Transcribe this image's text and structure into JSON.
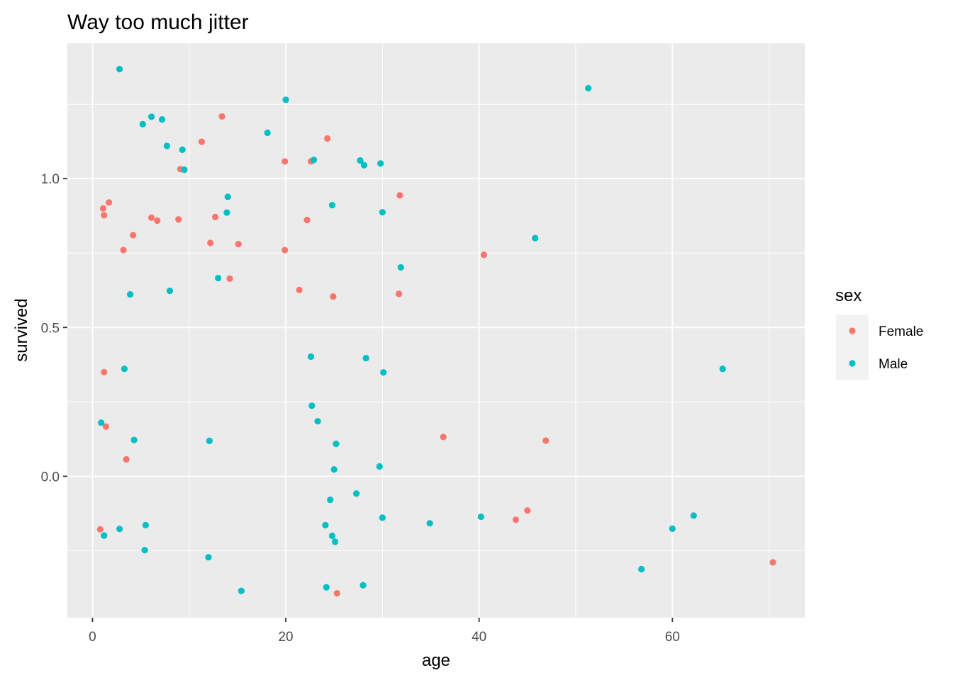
{
  "chart_data": {
    "type": "scatter",
    "title": "Way too much jitter",
    "xlabel": "age",
    "ylabel": "survived",
    "xlim": [
      -2.6,
      73.7
    ],
    "ylim": [
      -0.475,
      1.455
    ],
    "x_ticks": [
      0,
      20,
      40,
      60
    ],
    "x_tick_labels": [
      "0",
      "20",
      "40",
      "60"
    ],
    "y_ticks": [
      0.0,
      0.5,
      1.0
    ],
    "y_tick_labels": [
      "0.0",
      "0.5",
      "1.0"
    ],
    "grid": true,
    "legend": {
      "title": "sex",
      "position": "right"
    },
    "series": [
      {
        "name": "Female",
        "color": "#F8766D",
        "points": [
          [
            1.1,
            0.9
          ],
          [
            1.2,
            0.877
          ],
          [
            1.7,
            0.92
          ],
          [
            4.2,
            0.81
          ],
          [
            3.2,
            0.76
          ],
          [
            6.1,
            0.869
          ],
          [
            6.7,
            0.859
          ],
          [
            8.9,
            0.863
          ],
          [
            9.1,
            1.032
          ],
          [
            11.3,
            1.124
          ],
          [
            13.4,
            1.209
          ],
          [
            12.2,
            0.784
          ],
          [
            12.7,
            0.871
          ],
          [
            15.1,
            0.78
          ],
          [
            14.2,
            0.664
          ],
          [
            19.9,
            1.058
          ],
          [
            19.9,
            0.76
          ],
          [
            21.4,
            0.626
          ],
          [
            22.2,
            0.861
          ],
          [
            22.6,
            1.058
          ],
          [
            24.3,
            1.135
          ],
          [
            24.9,
            0.604
          ],
          [
            31.8,
            0.944
          ],
          [
            31.7,
            0.613
          ],
          [
            40.5,
            0.744
          ],
          [
            1.2,
            0.35
          ],
          [
            1.4,
            0.167
          ],
          [
            3.5,
            0.057
          ],
          [
            0.8,
            -0.178
          ],
          [
            36.3,
            0.132
          ],
          [
            46.9,
            0.12
          ],
          [
            43.8,
            -0.146
          ],
          [
            45.0,
            -0.115
          ],
          [
            25.3,
            -0.393
          ],
          [
            70.4,
            -0.289
          ]
        ]
      },
      {
        "name": "Male",
        "color": "#00BFC4",
        "points": [
          [
            2.8,
            1.368
          ],
          [
            5.2,
            1.183
          ],
          [
            6.1,
            1.208
          ],
          [
            7.2,
            1.199
          ],
          [
            7.7,
            1.11
          ],
          [
            9.3,
            1.097
          ],
          [
            9.5,
            1.03
          ],
          [
            18.1,
            1.154
          ],
          [
            20.0,
            1.265
          ],
          [
            22.9,
            1.063
          ],
          [
            27.7,
            1.061
          ],
          [
            28.1,
            1.045
          ],
          [
            29.8,
            1.051
          ],
          [
            51.3,
            1.304
          ],
          [
            14.0,
            0.939
          ],
          [
            13.9,
            0.886
          ],
          [
            24.8,
            0.911
          ],
          [
            30.0,
            0.887
          ],
          [
            45.8,
            0.8
          ],
          [
            13.0,
            0.666
          ],
          [
            31.9,
            0.702
          ],
          [
            3.9,
            0.611
          ],
          [
            8.0,
            0.623
          ],
          [
            22.6,
            0.402
          ],
          [
            28.3,
            0.397
          ],
          [
            30.1,
            0.349
          ],
          [
            3.3,
            0.361
          ],
          [
            65.2,
            0.361
          ],
          [
            22.7,
            0.237
          ],
          [
            23.3,
            0.185
          ],
          [
            0.9,
            0.18
          ],
          [
            4.3,
            0.122
          ],
          [
            12.1,
            0.119
          ],
          [
            25.2,
            0.109
          ],
          [
            25.0,
            0.023
          ],
          [
            29.7,
            0.033
          ],
          [
            27.3,
            -0.058
          ],
          [
            24.6,
            -0.079
          ],
          [
            30.0,
            -0.139
          ],
          [
            34.9,
            -0.158
          ],
          [
            40.2,
            -0.136
          ],
          [
            24.1,
            -0.164
          ],
          [
            24.8,
            -0.2
          ],
          [
            25.1,
            -0.22
          ],
          [
            2.8,
            -0.177
          ],
          [
            1.2,
            -0.199
          ],
          [
            5.5,
            -0.164
          ],
          [
            5.4,
            -0.248
          ],
          [
            12.0,
            -0.272
          ],
          [
            15.4,
            -0.385
          ],
          [
            24.2,
            -0.373
          ],
          [
            28.0,
            -0.366
          ],
          [
            56.8,
            -0.312
          ],
          [
            60.0,
            -0.176
          ],
          [
            62.2,
            -0.132
          ]
        ]
      }
    ]
  }
}
